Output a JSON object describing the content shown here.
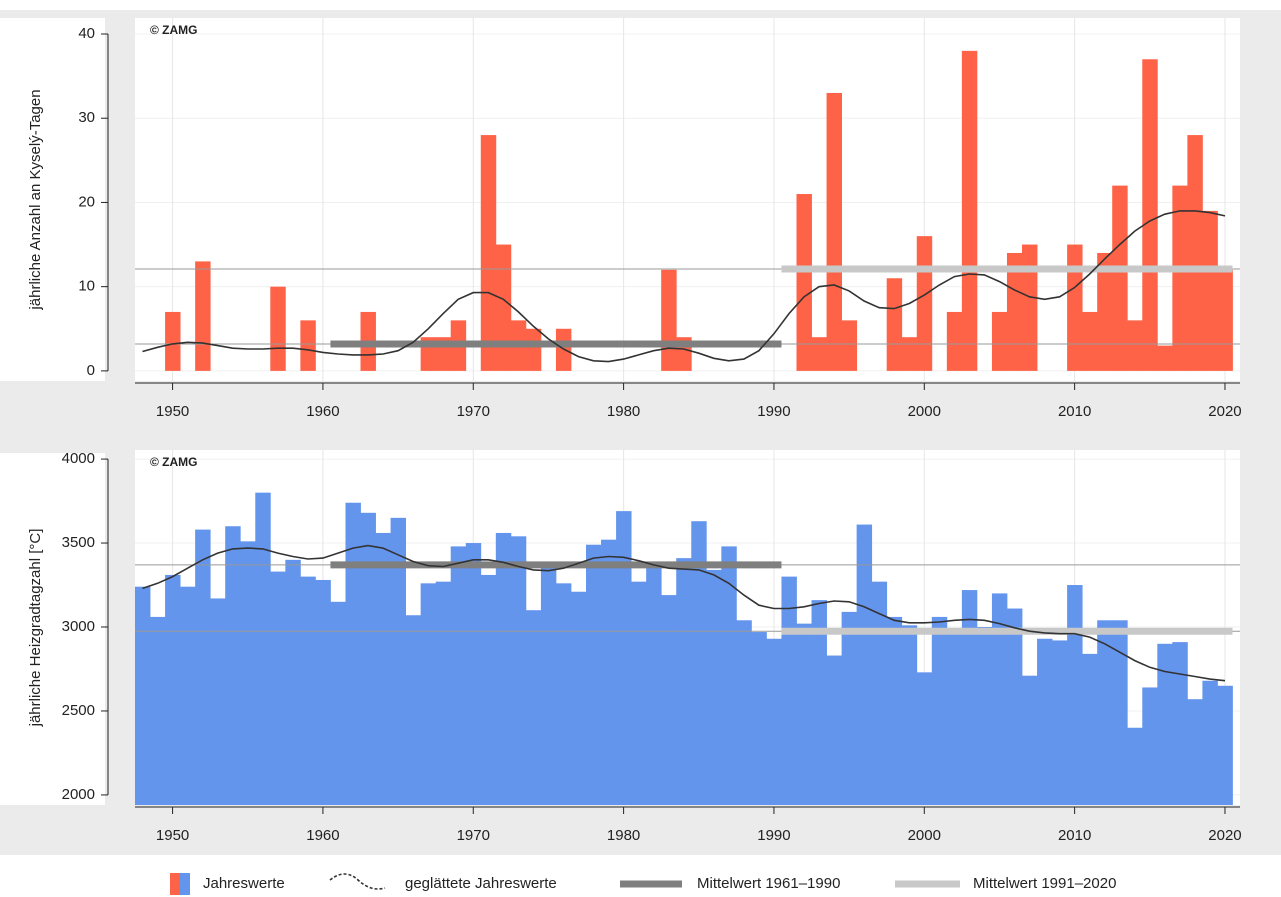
{
  "chart_data": [
    {
      "type": "bar",
      "ylabel": "jährliche Anzahl an Kyselý-Tagen",
      "annotation": "© ZAMG",
      "x": [
        1948,
        1949,
        1950,
        1951,
        1952,
        1953,
        1954,
        1955,
        1956,
        1957,
        1958,
        1959,
        1960,
        1961,
        1962,
        1963,
        1964,
        1965,
        1966,
        1967,
        1968,
        1969,
        1970,
        1971,
        1972,
        1973,
        1974,
        1975,
        1976,
        1977,
        1978,
        1979,
        1980,
        1981,
        1982,
        1983,
        1984,
        1985,
        1986,
        1987,
        1988,
        1989,
        1990,
        1991,
        1992,
        1993,
        1994,
        1995,
        1996,
        1997,
        1998,
        1999,
        2000,
        2001,
        2002,
        2003,
        2004,
        2005,
        2006,
        2007,
        2008,
        2009,
        2010,
        2011,
        2012,
        2013,
        2014,
        2015,
        2016,
        2017,
        2018,
        2019,
        2020
      ],
      "series": [
        {
          "name": "Jahreswerte",
          "color": "#ff6347",
          "values": [
            0,
            0,
            7,
            0,
            13,
            0,
            0,
            0,
            0,
            10,
            0,
            6,
            0,
            0,
            0,
            7,
            0,
            0,
            0,
            4,
            4,
            6,
            0,
            28,
            15,
            6,
            5,
            0,
            5,
            0,
            0,
            0,
            0,
            0,
            0,
            12,
            4,
            0,
            0,
            0,
            0,
            0,
            0,
            0,
            21,
            4,
            33,
            6,
            0,
            0,
            11,
            4,
            16,
            0,
            7,
            38,
            0,
            7,
            14,
            15,
            0,
            0,
            15,
            7,
            14,
            22,
            6,
            37,
            3,
            22,
            28,
            19,
            12
          ]
        },
        {
          "name": "geglättete Jahreswerte",
          "color": "#333333",
          "style": "line",
          "values": [
            2.3,
            2.8,
            3.2,
            3.4,
            3.3,
            3.0,
            2.7,
            2.6,
            2.6,
            2.7,
            2.7,
            2.5,
            2.2,
            2.0,
            1.9,
            1.9,
            2.0,
            2.4,
            3.4,
            5.0,
            6.8,
            8.5,
            9.3,
            9.3,
            8.5,
            7.0,
            5.3,
            3.8,
            2.6,
            1.7,
            1.2,
            1.1,
            1.4,
            1.9,
            2.4,
            2.7,
            2.6,
            2.1,
            1.5,
            1.2,
            1.4,
            2.4,
            4.4,
            6.8,
            8.8,
            10.0,
            10.2,
            9.5,
            8.3,
            7.5,
            7.4,
            8.0,
            9.0,
            10.2,
            11.2,
            11.5,
            11.4,
            10.6,
            9.6,
            8.8,
            8.5,
            8.8,
            9.9,
            11.5,
            13.3,
            15.0,
            16.6,
            17.8,
            18.6,
            19.0,
            19.0,
            18.8,
            18.4
          ]
        }
      ],
      "means": [
        {
          "name": "Mittelwert 1961–1990",
          "value": 3.2,
          "from": 1961,
          "to": 1990,
          "color": "#7f7f7f"
        },
        {
          "name": "Mittelwert 1991–2020",
          "value": 12.1,
          "from": 1991,
          "to": 2020,
          "color": "#c8c8c8"
        }
      ],
      "xlim": [
        1947.5,
        2021
      ],
      "xticks": [
        1950,
        1960,
        1970,
        1980,
        1990,
        2000,
        2010,
        2020
      ],
      "ylim": [
        -1.2,
        41.9
      ],
      "yticks": [
        0,
        10,
        20,
        30,
        40
      ],
      "grid": true
    },
    {
      "type": "bar",
      "ylabel": "jährliche Heizgradtagzahl [°C]",
      "annotation": "© ZAMG",
      "x": [
        1948,
        1949,
        1950,
        1951,
        1952,
        1953,
        1954,
        1955,
        1956,
        1957,
        1958,
        1959,
        1960,
        1961,
        1962,
        1963,
        1964,
        1965,
        1966,
        1967,
        1968,
        1969,
        1970,
        1971,
        1972,
        1973,
        1974,
        1975,
        1976,
        1977,
        1978,
        1979,
        1980,
        1981,
        1982,
        1983,
        1984,
        1985,
        1986,
        1987,
        1988,
        1989,
        1990,
        1991,
        1992,
        1993,
        1994,
        1995,
        1996,
        1997,
        1998,
        1999,
        2000,
        2001,
        2002,
        2003,
        2004,
        2005,
        2006,
        2007,
        2008,
        2009,
        2010,
        2011,
        2012,
        2013,
        2014,
        2015,
        2016,
        2017,
        2018,
        2019,
        2020
      ],
      "series": [
        {
          "color": "#6495ed",
          "values": [
            3240,
            3060,
            3310,
            3240,
            3580,
            3170,
            3600,
            3510,
            3800,
            3330,
            3400,
            3300,
            3280,
            3150,
            3740,
            3680,
            3560,
            3650,
            3070,
            3260,
            3270,
            3480,
            3500,
            3310,
            3560,
            3540,
            3100,
            3360,
            3260,
            3210,
            3490,
            3520,
            3690,
            3270,
            3370,
            3190,
            3410,
            3630,
            3340,
            3480,
            3040,
            2970,
            2930,
            3300,
            3020,
            3160,
            2830,
            3090,
            3610,
            3270,
            3060,
            3010,
            2730,
            3060,
            2990,
            3220,
            3000,
            3200,
            3110,
            2710,
            2930,
            2920,
            3250,
            2840,
            3040,
            3040,
            2400,
            2640,
            2900,
            2910,
            2570,
            2680,
            2650
          ]
        },
        {
          "color": "#333333",
          "style": "line",
          "values": [
            3230,
            3260,
            3300,
            3350,
            3400,
            3440,
            3465,
            3470,
            3465,
            3440,
            3420,
            3405,
            3410,
            3440,
            3470,
            3485,
            3470,
            3430,
            3390,
            3365,
            3360,
            3380,
            3400,
            3400,
            3385,
            3360,
            3340,
            3335,
            3350,
            3380,
            3410,
            3420,
            3415,
            3395,
            3370,
            3350,
            3345,
            3340,
            3310,
            3260,
            3190,
            3130,
            3110,
            3110,
            3120,
            3140,
            3155,
            3150,
            3120,
            3080,
            3040,
            3025,
            3025,
            3030,
            3040,
            3045,
            3040,
            3020,
            2995,
            2975,
            2965,
            2960,
            2960,
            2940,
            2900,
            2850,
            2800,
            2760,
            2735,
            2720,
            2705,
            2690,
            2680
          ]
        }
      ],
      "means": [
        {
          "value": 3370,
          "from": 1961,
          "to": 1990,
          "color": "#7f7f7f"
        },
        {
          "value": 2975,
          "from": 1991,
          "to": 2020,
          "color": "#c8c8c8"
        }
      ],
      "xlim": [
        1947.5,
        2021
      ],
      "xticks": [
        1950,
        1960,
        1970,
        1980,
        1990,
        2000,
        2010,
        2020
      ],
      "ylim": [
        1940,
        4054
      ],
      "yticks": [
        2000,
        2500,
        3000,
        3500,
        4000
      ],
      "grid": true
    }
  ]
}
